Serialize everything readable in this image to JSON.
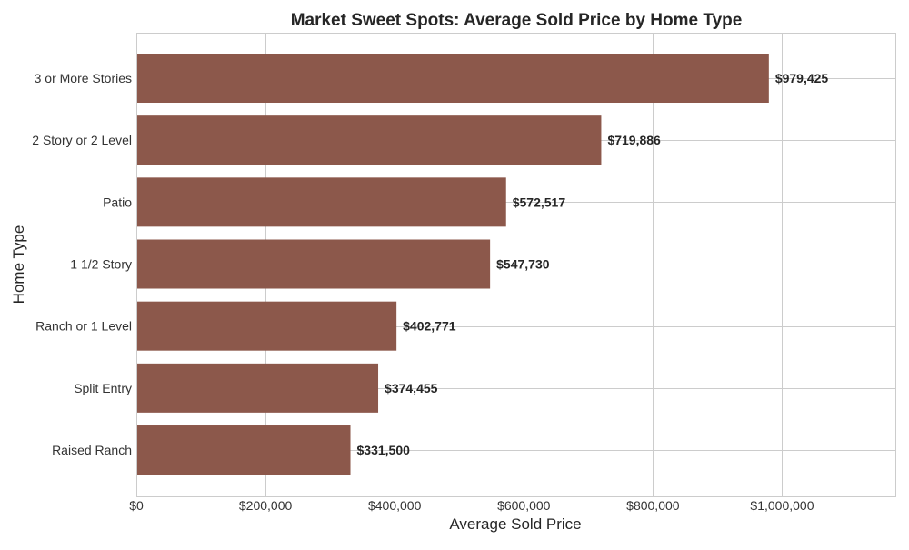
{
  "chart_data": {
    "type": "bar",
    "orientation": "horizontal",
    "title": "Market Sweet Spots: Average Sold Price by Home Type",
    "xlabel": "Average Sold Price",
    "ylabel": "Home Type",
    "categories": [
      "3 or More Stories",
      "2 Story or 2 Level",
      "Patio",
      "1 1/2 Story",
      "Ranch or 1 Level",
      "Split Entry",
      "Raised Ranch"
    ],
    "values": [
      979425,
      719886,
      572517,
      547730,
      402771,
      374455,
      331500
    ],
    "data_labels": [
      "$979,425",
      "$719,886",
      "$572,517",
      "$547,730",
      "$402,771",
      "$374,455",
      "$331,500"
    ],
    "xticks": [
      0,
      200000,
      400000,
      600000,
      800000,
      1000000
    ],
    "xtick_labels": [
      "$0",
      "$200,000",
      "$400,000",
      "$600,000",
      "$800,000",
      "$1,000,000"
    ],
    "xlim": [
      0,
      1175310
    ],
    "grid": true,
    "bar_color": "#8c584b"
  }
}
